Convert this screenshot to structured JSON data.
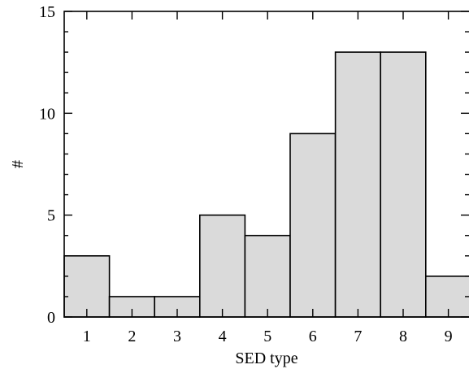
{
  "chart_data": {
    "type": "bar",
    "categories": [
      "1",
      "2",
      "3",
      "4",
      "5",
      "6",
      "7",
      "8",
      "9"
    ],
    "values": [
      3,
      1,
      1,
      5,
      4,
      9,
      13,
      13,
      2
    ],
    "title": "",
    "xlabel": "SED type",
    "ylabel": "#",
    "ylim": [
      0,
      15
    ],
    "yticks": [
      "0",
      "5",
      "10",
      "15"
    ],
    "grid": false,
    "colors": {
      "bar_fill": "#dadada",
      "bar_stroke": "#000000"
    }
  }
}
